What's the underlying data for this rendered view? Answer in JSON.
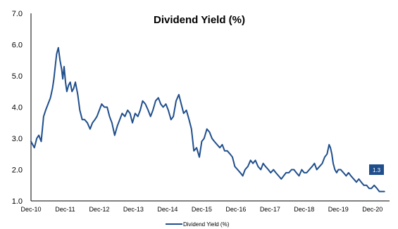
{
  "colors": {
    "series": "#1F4E8C",
    "axis": "#000000",
    "label_bg": "#1F4E8C",
    "label_text": "#FFFFFF"
  },
  "chart_data": {
    "type": "line",
    "title": "Dividend Yield (%)",
    "xlabel": "",
    "ylabel": "",
    "x_tick_labels": [
      "Dec-10",
      "Dec-11",
      "Dec-12",
      "Dec-13",
      "Dec-14",
      "Dec-15",
      "Dec-16",
      "Dec-17",
      "Dec-18",
      "Dec-19",
      "Dec-20"
    ],
    "x_range": [
      2010.95,
      2021.45
    ],
    "y_tick_labels": [
      "1.0",
      "2.0",
      "3.0",
      "4.0",
      "5.0",
      "6.0",
      "7.0"
    ],
    "ylim": [
      1.0,
      7.0
    ],
    "grid": false,
    "legend_position": "bottom",
    "series": [
      {
        "name": "Dividend Yield (%)",
        "x": [
          2010.95,
          2011.0,
          2011.05,
          2011.12,
          2011.18,
          2011.25,
          2011.32,
          2011.38,
          2011.45,
          2011.52,
          2011.58,
          2011.62,
          2011.66,
          2011.7,
          2011.75,
          2011.8,
          2011.85,
          2011.88,
          2011.92,
          2011.96,
          2012.0,
          2012.05,
          2012.1,
          2012.15,
          2012.2,
          2012.25,
          2012.32,
          2012.38,
          2012.45,
          2012.52,
          2012.6,
          2012.68,
          2012.75,
          2012.82,
          2012.88,
          2012.95,
          2013.02,
          2013.1,
          2013.18,
          2013.25,
          2013.32,
          2013.4,
          2013.48,
          2013.55,
          2013.62,
          2013.7,
          2013.78,
          2013.85,
          2013.92,
          2014.0,
          2014.08,
          2014.15,
          2014.22,
          2014.3,
          2014.38,
          2014.45,
          2014.52,
          2014.6,
          2014.68,
          2014.75,
          2014.82,
          2014.9,
          2014.97,
          2015.05,
          2015.12,
          2015.2,
          2015.28,
          2015.35,
          2015.42,
          2015.5,
          2015.58,
          2015.65,
          2015.72,
          2015.8,
          2015.88,
          2015.95,
          2016.02,
          2016.1,
          2016.18,
          2016.25,
          2016.32,
          2016.4,
          2016.48,
          2016.55,
          2016.62,
          2016.7,
          2016.78,
          2016.85,
          2016.92,
          2017.0,
          2017.08,
          2017.15,
          2017.22,
          2017.3,
          2017.38,
          2017.45,
          2017.52,
          2017.6,
          2017.68,
          2017.75,
          2017.82,
          2017.9,
          2017.97,
          2018.05,
          2018.12,
          2018.2,
          2018.28,
          2018.35,
          2018.42,
          2018.5,
          2018.58,
          2018.65,
          2018.72,
          2018.8,
          2018.88,
          2018.95,
          2019.02,
          2019.1,
          2019.18,
          2019.25,
          2019.32,
          2019.4,
          2019.48,
          2019.55,
          2019.62,
          2019.68,
          2019.72,
          2019.76,
          2019.8,
          2019.85,
          2019.9,
          2019.95,
          2020.02,
          2020.1,
          2020.18,
          2020.25,
          2020.32,
          2020.4,
          2020.48,
          2020.55,
          2020.62,
          2020.7,
          2020.78,
          2020.85,
          2020.92,
          2021.0,
          2021.08,
          2021.15,
          2021.22,
          2021.3
        ],
        "values": [
          2.9,
          2.8,
          2.7,
          3.0,
          3.1,
          2.9,
          3.7,
          3.9,
          4.1,
          4.3,
          4.6,
          4.9,
          5.3,
          5.7,
          5.9,
          5.5,
          5.2,
          4.9,
          5.3,
          4.8,
          4.5,
          4.7,
          4.8,
          4.5,
          4.6,
          4.8,
          4.4,
          3.9,
          3.6,
          3.6,
          3.5,
          3.3,
          3.5,
          3.6,
          3.7,
          3.9,
          4.1,
          4.0,
          4.0,
          3.7,
          3.5,
          3.1,
          3.4,
          3.6,
          3.8,
          3.7,
          3.9,
          3.8,
          3.5,
          3.8,
          3.7,
          3.9,
          4.2,
          4.1,
          3.9,
          3.7,
          3.9,
          4.2,
          4.3,
          4.1,
          4.0,
          4.1,
          3.9,
          3.6,
          3.7,
          4.2,
          4.4,
          4.1,
          3.8,
          3.9,
          3.6,
          3.3,
          2.6,
          2.7,
          2.4,
          2.9,
          3.0,
          3.3,
          3.2,
          3.0,
          2.9,
          2.8,
          2.7,
          2.8,
          2.6,
          2.6,
          2.5,
          2.4,
          2.1,
          2.0,
          1.9,
          1.8,
          2.0,
          2.1,
          2.3,
          2.2,
          2.3,
          2.1,
          2.0,
          2.2,
          2.1,
          2.0,
          1.9,
          2.0,
          1.9,
          1.8,
          1.7,
          1.8,
          1.9,
          1.9,
          2.0,
          2.0,
          1.9,
          1.8,
          2.0,
          1.9,
          1.9,
          2.0,
          2.1,
          2.2,
          2.0,
          2.1,
          2.2,
          2.4,
          2.5,
          2.8,
          2.7,
          2.5,
          2.2,
          2.0,
          1.9,
          2.0,
          2.0,
          1.9,
          1.8,
          1.9,
          1.8,
          1.7,
          1.6,
          1.7,
          1.6,
          1.5,
          1.5,
          1.4,
          1.4,
          1.5,
          1.4,
          1.3,
          1.3,
          1.3
        ]
      }
    ],
    "end_label": "1.3"
  }
}
